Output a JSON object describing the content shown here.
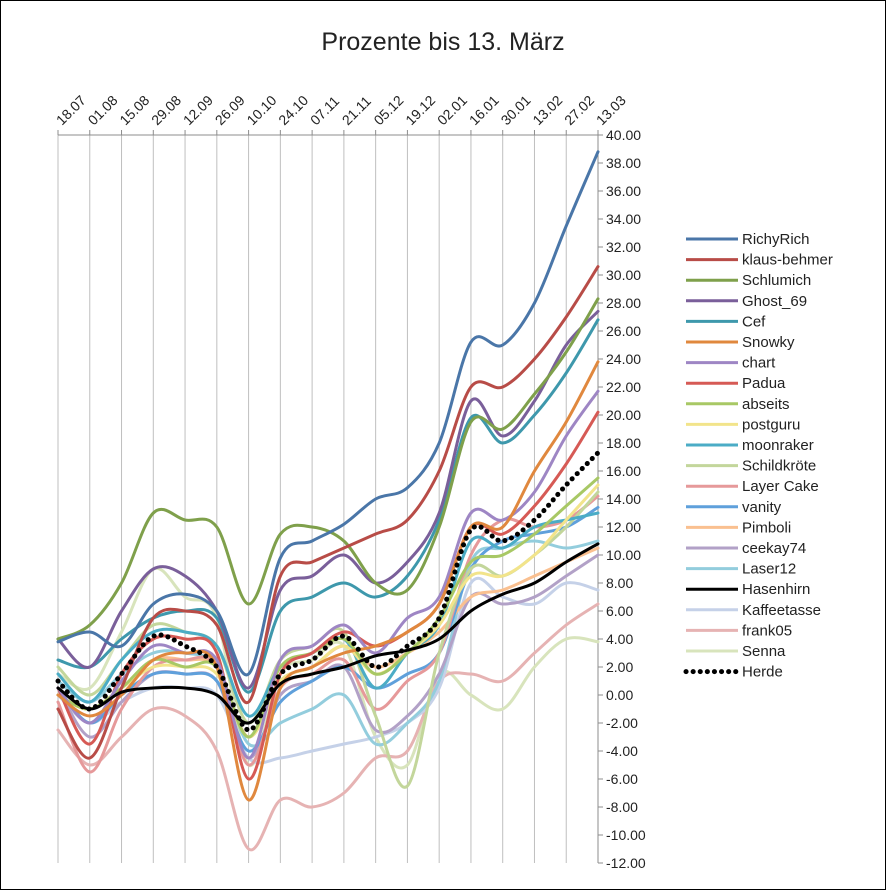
{
  "chart_data": {
    "type": "line",
    "title": "Prozente bis 13. März",
    "xlabel": "",
    "ylabel": "",
    "ylim": [
      -12,
      40
    ],
    "ytick_step": 2,
    "yaxis_position": "right",
    "xaxis_position": "top",
    "categories": [
      "18.07",
      "01.08",
      "15.08",
      "29.08",
      "12.09",
      "26.09",
      "10.10",
      "24.10",
      "07.11",
      "21.11",
      "05.12",
      "19.12",
      "02.01",
      "16.01",
      "30.01",
      "13.02",
      "27.02",
      "13.03"
    ],
    "legend_position": "right",
    "series": [
      {
        "name": "RichyRich",
        "color": "#4a76a8",
        "width": 3,
        "values": [
          3.8,
          4.5,
          3.5,
          6.5,
          7.2,
          6.0,
          1.5,
          9.8,
          11.0,
          12.2,
          14.0,
          14.8,
          18.0,
          25.2,
          25.0,
          28.0,
          33.5,
          38.8
        ]
      },
      {
        "name": "klaus-behmer",
        "color": "#b84c47",
        "width": 3,
        "values": [
          -1.0,
          -4.5,
          0.5,
          5.5,
          6.0,
          5.0,
          -0.5,
          8.5,
          9.5,
          10.5,
          11.5,
          12.5,
          16.0,
          22.0,
          22.0,
          24.0,
          27.0,
          30.6
        ]
      },
      {
        "name": "Schlumich",
        "color": "#7fa04b",
        "width": 3,
        "values": [
          4.0,
          5.0,
          8.0,
          13.0,
          12.5,
          12.0,
          6.5,
          11.5,
          12.0,
          11.0,
          8.0,
          7.5,
          12.0,
          19.5,
          19.0,
          21.5,
          24.5,
          28.3
        ]
      },
      {
        "name": "Ghost_69",
        "color": "#7a5f9a",
        "width": 3,
        "values": [
          4.0,
          2.0,
          6.0,
          9.0,
          8.5,
          6.0,
          0.5,
          7.5,
          8.5,
          10.0,
          8.0,
          9.5,
          13.0,
          21.0,
          18.5,
          21.0,
          25.0,
          27.4
        ]
      },
      {
        "name": "Cef",
        "color": "#3e98ac",
        "width": 3,
        "values": [
          2.5,
          2.0,
          4.0,
          5.5,
          6.0,
          5.5,
          0.2,
          6.0,
          7.0,
          8.0,
          7.0,
          8.5,
          12.5,
          19.8,
          18.0,
          20.0,
          23.0,
          26.8
        ]
      },
      {
        "name": "Snowky",
        "color": "#e0883e",
        "width": 3,
        "values": [
          0.0,
          -1.5,
          0.0,
          2.5,
          3.0,
          2.0,
          -7.5,
          0.5,
          2.0,
          3.0,
          3.5,
          4.5,
          6.5,
          12.0,
          12.0,
          16.0,
          19.5,
          23.8
        ]
      },
      {
        "name": "chart",
        "color": "#9e86c4",
        "width": 3,
        "values": [
          0.5,
          -2.0,
          1.0,
          3.5,
          3.0,
          2.5,
          -4.5,
          2.5,
          3.5,
          5.0,
          3.0,
          5.5,
          7.0,
          13.0,
          12.5,
          14.5,
          18.5,
          21.7
        ]
      },
      {
        "name": "Padua",
        "color": "#d65a55",
        "width": 3,
        "values": [
          0.5,
          -3.5,
          1.5,
          4.0,
          4.0,
          3.0,
          -6.0,
          1.5,
          3.0,
          4.5,
          3.5,
          4.5,
          6.5,
          12.0,
          11.5,
          13.5,
          16.5,
          20.2
        ]
      },
      {
        "name": "abseits",
        "color": "#a8c865",
        "width": 3,
        "values": [
          0.0,
          -1.0,
          0.5,
          2.5,
          2.0,
          2.0,
          -3.0,
          2.0,
          3.0,
          4.0,
          1.5,
          3.0,
          5.5,
          9.5,
          10.0,
          11.5,
          13.5,
          15.5
        ]
      },
      {
        "name": "postguru",
        "color": "#f2e48b",
        "width": 3,
        "values": [
          0.0,
          -1.0,
          0.5,
          2.0,
          2.0,
          1.5,
          -3.0,
          1.0,
          2.0,
          3.5,
          1.5,
          3.0,
          5.0,
          8.5,
          8.5,
          10.0,
          12.5,
          15.0
        ]
      },
      {
        "name": "moonraker",
        "color": "#4bacc6",
        "width": 3,
        "values": [
          1.5,
          -0.5,
          2.5,
          4.5,
          4.5,
          3.5,
          -1.5,
          2.0,
          3.0,
          4.0,
          0.5,
          3.0,
          5.0,
          11.0,
          10.5,
          12.0,
          12.5,
          13.0
        ]
      },
      {
        "name": "Schildkröte",
        "color": "#c3d69b",
        "width": 3,
        "values": [
          2.0,
          0.0,
          2.5,
          5.0,
          4.5,
          3.5,
          -2.0,
          2.5,
          3.5,
          4.5,
          -1.5,
          -6.5,
          3.0,
          9.0,
          8.5,
          10.0,
          12.0,
          14.5
        ]
      },
      {
        "name": "Layer Cake",
        "color": "#e6999a",
        "width": 3,
        "values": [
          -0.5,
          -5.5,
          -1.0,
          2.0,
          2.5,
          2.0,
          -5.0,
          0.5,
          1.5,
          2.5,
          -1.0,
          1.0,
          3.0,
          10.0,
          12.5,
          12.0,
          12.5,
          14.2
        ]
      },
      {
        "name": "vanity",
        "color": "#5fa0db",
        "width": 3,
        "values": [
          0.5,
          -2.0,
          0.0,
          1.5,
          1.5,
          1.0,
          -4.0,
          -0.5,
          1.0,
          2.0,
          0.5,
          1.5,
          3.0,
          9.0,
          11.0,
          11.5,
          12.0,
          13.4
        ]
      },
      {
        "name": "Pimboli",
        "color": "#fac090",
        "width": 3,
        "values": [
          0.0,
          -1.0,
          0.5,
          2.5,
          2.5,
          2.0,
          -3.0,
          1.0,
          2.0,
          3.5,
          2.0,
          3.0,
          4.5,
          7.0,
          7.5,
          8.5,
          9.5,
          10.5
        ]
      },
      {
        "name": "ceekay74",
        "color": "#b2a1c7",
        "width": 3,
        "values": [
          0.5,
          -3.0,
          -0.5,
          1.5,
          1.5,
          1.0,
          -4.5,
          0.0,
          1.0,
          2.0,
          -2.5,
          -1.5,
          1.5,
          7.0,
          6.5,
          7.0,
          8.5,
          10.0
        ]
      },
      {
        "name": "Laser12",
        "color": "#93cddd",
        "width": 3,
        "values": [
          1.0,
          -0.5,
          1.5,
          3.0,
          3.0,
          2.0,
          -3.5,
          -2.0,
          -1.0,
          0.0,
          -3.5,
          -2.0,
          1.0,
          9.5,
          10.5,
          11.0,
          10.5,
          11.0
        ]
      },
      {
        "name": "Hasenhirn",
        "color": "#000000",
        "width": 3,
        "values": [
          0.5,
          -1.0,
          0.2,
          0.5,
          0.5,
          0.0,
          -2.0,
          0.8,
          1.5,
          2.0,
          2.8,
          3.2,
          4.0,
          6.0,
          7.2,
          8.0,
          9.5,
          10.8
        ]
      },
      {
        "name": "Kaffeetasse",
        "color": "#c5d1e8",
        "width": 3,
        "values": [
          0.0,
          -2.0,
          -0.5,
          0.5,
          0.5,
          0.0,
          -4.5,
          -4.5,
          -4.0,
          -3.5,
          -3.0,
          -2.0,
          0.5,
          8.0,
          7.0,
          6.5,
          8.0,
          7.5
        ]
      },
      {
        "name": "frank05",
        "color": "#e6b3b3",
        "width": 3,
        "values": [
          -2.5,
          -5.0,
          -3.0,
          -1.0,
          -1.5,
          -4.0,
          -11.0,
          -7.5,
          -8.0,
          -7.0,
          -4.5,
          -4.0,
          1.0,
          1.5,
          1.0,
          3.0,
          5.0,
          6.5
        ]
      },
      {
        "name": "Senna",
        "color": "#d8e4bc",
        "width": 3,
        "values": [
          1.5,
          0.5,
          4.5,
          9.0,
          7.0,
          5.5,
          -5.0,
          1.5,
          2.5,
          3.5,
          -3.0,
          -5.0,
          1.5,
          0.0,
          -1.0,
          2.0,
          4.0,
          3.8
        ]
      },
      {
        "name": "Herde",
        "color": "#000000",
        "width": 4,
        "dashed": true,
        "values": [
          1.0,
          -1.0,
          1.5,
          4.2,
          3.5,
          2.0,
          -2.5,
          1.5,
          2.5,
          4.2,
          2.0,
          3.5,
          5.5,
          11.8,
          11.0,
          12.5,
          15.0,
          17.3
        ]
      }
    ]
  }
}
